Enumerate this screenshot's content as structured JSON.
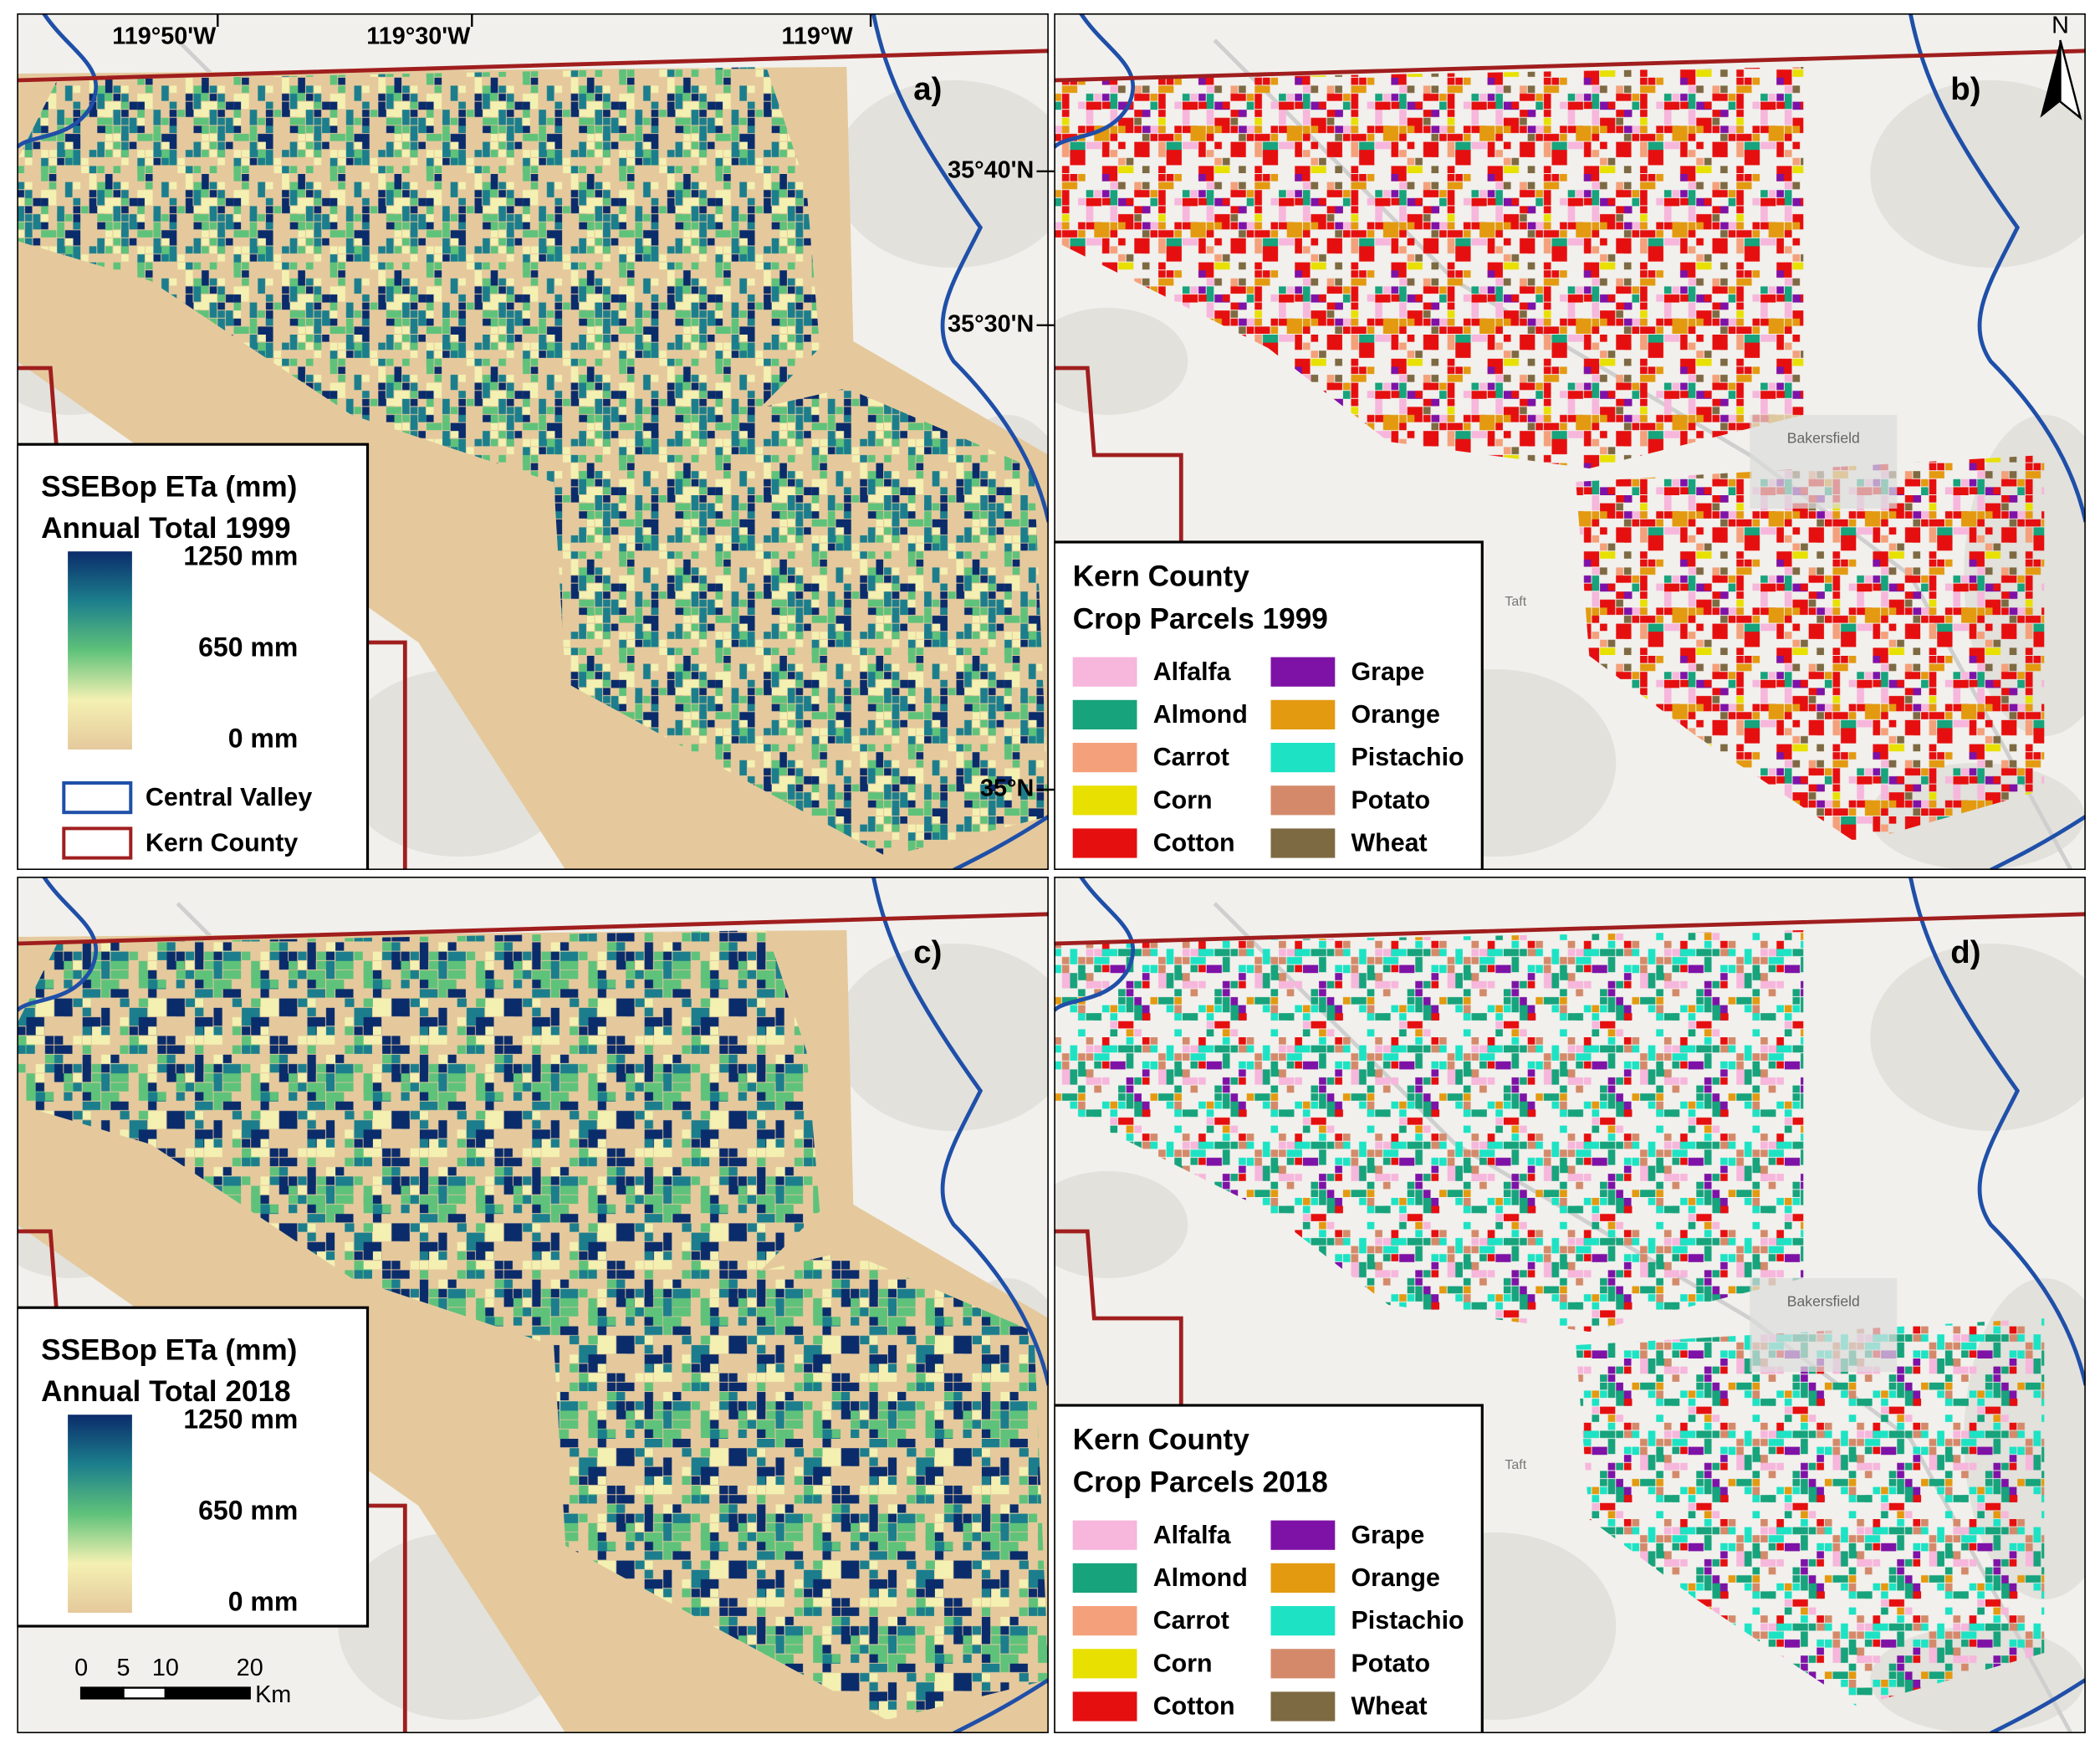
{
  "panels": [
    {
      "label": "a)",
      "map": "eta",
      "legend": {
        "title": [
          "SSEBop ETa (mm)",
          "Annual Total 1999"
        ],
        "ticks": [
          "1250 mm",
          "650 mm",
          "0 mm"
        ],
        "boundaries": [
          {
            "name": "Central Valley",
            "color": "#1f4fa8"
          },
          {
            "name": "Kern County",
            "color": "#a01e1e"
          }
        ]
      }
    },
    {
      "label": "b)",
      "map": "crops",
      "legend": {
        "title": [
          "Kern County",
          "Crop Parcels 1999"
        ],
        "items": [
          {
            "name": "Alfalfa",
            "color": "#f7b6dc"
          },
          {
            "name": "Almond",
            "color": "#17a37c"
          },
          {
            "name": "Carrot",
            "color": "#f4a07a"
          },
          {
            "name": "Corn",
            "color": "#e8e000"
          },
          {
            "name": "Cotton",
            "color": "#e60f0f"
          },
          {
            "name": "Grape",
            "color": "#7e12a6"
          },
          {
            "name": "Orange",
            "color": "#e39a10"
          },
          {
            "name": "Pistachio",
            "color": "#1de3c4"
          },
          {
            "name": "Potato",
            "color": "#d48a6a"
          },
          {
            "name": "Wheat",
            "color": "#7e6a42"
          }
        ]
      }
    },
    {
      "label": "c)",
      "map": "eta",
      "legend": {
        "title": [
          "SSEBop ETa (mm)",
          "Annual Total 2018"
        ],
        "ticks": [
          "1250 mm",
          "650 mm",
          "0 mm"
        ]
      }
    },
    {
      "label": "d)",
      "map": "crops",
      "legend": {
        "title": [
          "Kern County",
          "Crop Parcels 2018"
        ],
        "items": [
          {
            "name": "Alfalfa",
            "color": "#f7b6dc"
          },
          {
            "name": "Almond",
            "color": "#17a37c"
          },
          {
            "name": "Carrot",
            "color": "#f4a07a"
          },
          {
            "name": "Corn",
            "color": "#e8e000"
          },
          {
            "name": "Cotton",
            "color": "#e60f0f"
          },
          {
            "name": "Grape",
            "color": "#7e12a6"
          },
          {
            "name": "Orange",
            "color": "#e39a10"
          },
          {
            "name": "Pistachio",
            "color": "#1de3c4"
          },
          {
            "name": "Potato",
            "color": "#d48a6a"
          },
          {
            "name": "Wheat",
            "color": "#7e6a42"
          }
        ]
      }
    }
  ],
  "colormap": [
    "#0b2c6b",
    "#1c7e8c",
    "#5fc27a",
    "#f4f0b2",
    "#e5c99c"
  ],
  "coordinates": {
    "longitude": [
      "119°50'W",
      "119°30'W",
      "119°W"
    ],
    "latitude": [
      "35°40'N",
      "35°30'N",
      "35°N"
    ]
  },
  "places": [
    "Bakersfield",
    "Taft"
  ],
  "scale_bar": {
    "ticks": [
      0,
      5,
      10,
      20
    ],
    "unit": "Km"
  },
  "north_arrow": "N"
}
